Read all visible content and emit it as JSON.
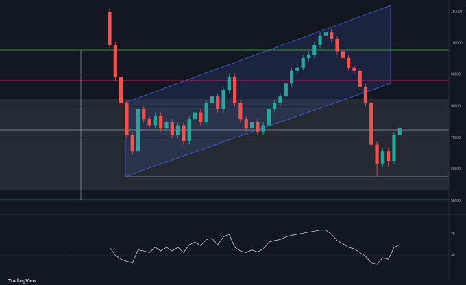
{
  "chart_data": {
    "type": "candlestick",
    "open": [
      110000,
      99400,
      89200,
      81000,
      70800,
      65700,
      79000,
      75900,
      73900,
      77000,
      72900,
      74900,
      70800,
      73900,
      68800,
      75900,
      78000,
      74900,
      81000,
      83100,
      79000,
      85100,
      89200,
      81000,
      75900,
      72900,
      74900,
      71900,
      73900,
      79000,
      81000,
      83100,
      87200,
      91200,
      92300,
      95300,
      96300,
      99400,
      102500,
      103500,
      101400,
      97400,
      95300,
      92300,
      91200,
      86100,
      81000,
      67800,
      61700,
      65700,
      62700,
      70800
    ],
    "high": [
      111000,
      100400,
      90200,
      82000,
      71800,
      80000,
      80000,
      76900,
      78000,
      78000,
      75900,
      75900,
      74900,
      74900,
      76900,
      79000,
      79000,
      82000,
      84100,
      84100,
      86100,
      90200,
      90200,
      82000,
      76900,
      75900,
      75900,
      74900,
      80000,
      82000,
      84100,
      88200,
      92200,
      93300,
      96300,
      97300,
      100400,
      103500,
      104500,
      104500,
      102400,
      98400,
      96300,
      93300,
      92200,
      87100,
      82000,
      68800,
      66700,
      66700,
      71800,
      73900
    ],
    "low": [
      98400,
      88200,
      80000,
      69800,
      64700,
      64700,
      74900,
      72900,
      72900,
      71900,
      71900,
      69800,
      69800,
      67800,
      67800,
      74900,
      73900,
      73900,
      80000,
      78000,
      78000,
      84100,
      80000,
      74900,
      71900,
      71900,
      70900,
      70900,
      72900,
      78000,
      80000,
      82100,
      86200,
      90200,
      91300,
      94300,
      95300,
      98400,
      101500,
      100400,
      96400,
      94300,
      91300,
      90200,
      85100,
      80000,
      66800,
      58000,
      60700,
      60700,
      61700,
      69800
    ],
    "close": [
      99400,
      89200,
      81000,
      70800,
      65700,
      79000,
      75900,
      73900,
      77000,
      72900,
      74900,
      70800,
      73900,
      68800,
      75900,
      78000,
      74900,
      81000,
      83100,
      79000,
      85100,
      89200,
      81000,
      75900,
      72900,
      74900,
      71900,
      73900,
      79000,
      81000,
      83100,
      87200,
      91200,
      92300,
      95300,
      96300,
      99400,
      102500,
      103500,
      101400,
      97400,
      95300,
      92300,
      91200,
      86100,
      81000,
      67800,
      61700,
      65700,
      62700,
      70800,
      72900
    ],
    "up_color": "#26a69a",
    "down_color": "#ef5350",
    "ylim": [
      46000,
      112000
    ],
    "yticks": [
      50000,
      60000,
      70000,
      80000,
      90000,
      100000,
      110000
    ],
    "oscillator": {
      "values": [
        45,
        30,
        22,
        18,
        15,
        40,
        38,
        35,
        45,
        38,
        45,
        38,
        45,
        35,
        50,
        55,
        48,
        60,
        62,
        50,
        65,
        70,
        45,
        38,
        35,
        40,
        36,
        42,
        55,
        58,
        60,
        65,
        68,
        70,
        72,
        74,
        76,
        78,
        78,
        70,
        58,
        52,
        45,
        42,
        35,
        28,
        15,
        12,
        25,
        22,
        45,
        50
      ],
      "color": "#c7c9d1",
      "ylim": [
        0,
        100
      ],
      "yticks": [
        30,
        70
      ]
    },
    "brand": "TradingView"
  }
}
